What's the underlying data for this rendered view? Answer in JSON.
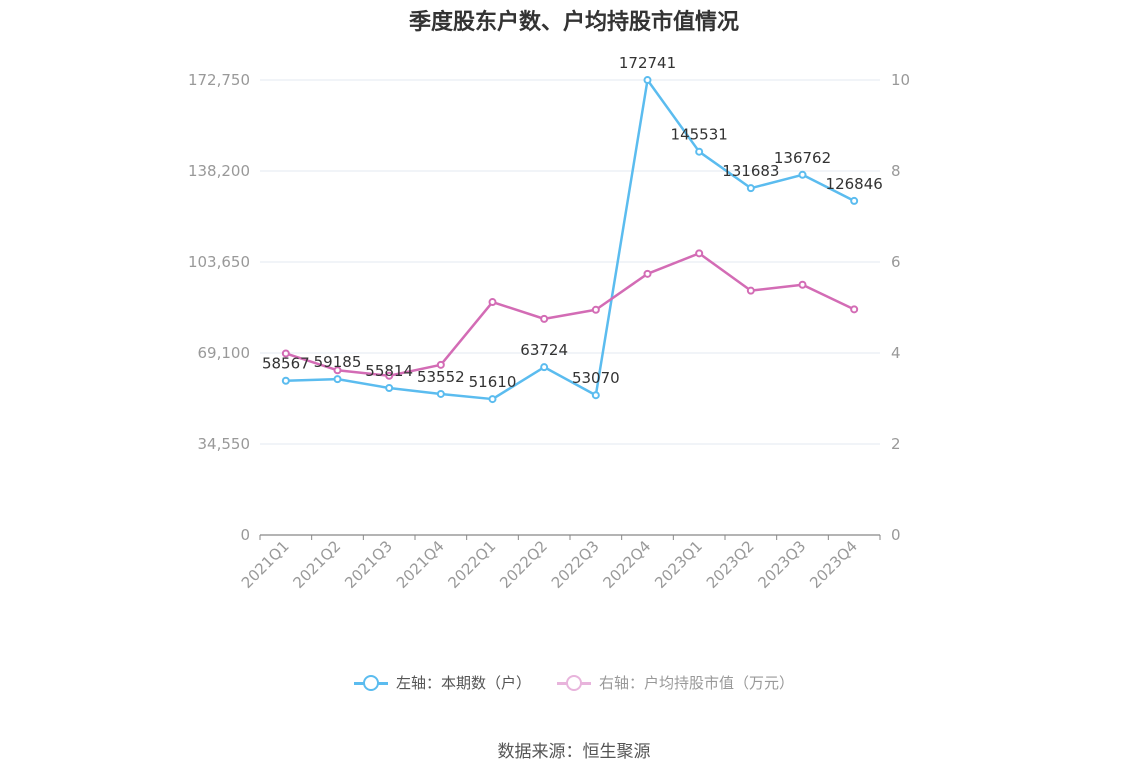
{
  "chart_data": {
    "type": "line",
    "title": "季度股东户数、户均持股市值情况",
    "categories": [
      "2021Q1",
      "2021Q2",
      "2021Q3",
      "2021Q4",
      "2022Q1",
      "2022Q2",
      "2022Q3",
      "2022Q4",
      "2023Q1",
      "2023Q2",
      "2023Q3",
      "2023Q4"
    ],
    "left_axis": {
      "ticks": [
        "0",
        "34,550",
        "69,100",
        "103,650",
        "138,200",
        "172,750"
      ],
      "min": 0,
      "max": 172750
    },
    "right_axis": {
      "ticks": [
        "0",
        "2",
        "4",
        "6",
        "8",
        "10"
      ],
      "min": 0,
      "max": 10
    },
    "grid": true,
    "legend_position": "bottom",
    "series": [
      {
        "name": "左轴：本期数（户）",
        "axis": "left",
        "color": "#5bbcef",
        "values": [
          58567,
          59185,
          55814,
          53552,
          51610,
          63724,
          53070,
          172741,
          145531,
          131683,
          136762,
          126846
        ],
        "labels": [
          "58567",
          "59185",
          "55814",
          "53552",
          "51610",
          "63724",
          "53070",
          "172741",
          "145531",
          "131683",
          "136762",
          "126846"
        ]
      },
      {
        "name": "右轴：户均持股市值（万元）",
        "axis": "right",
        "color": "#d36cb5",
        "values": [
          3.99,
          3.62,
          3.5,
          3.74,
          5.12,
          4.75,
          4.95,
          5.74,
          6.19,
          5.37,
          5.5,
          4.96
        ]
      }
    ]
  },
  "source": "数据来源：恒生聚源"
}
